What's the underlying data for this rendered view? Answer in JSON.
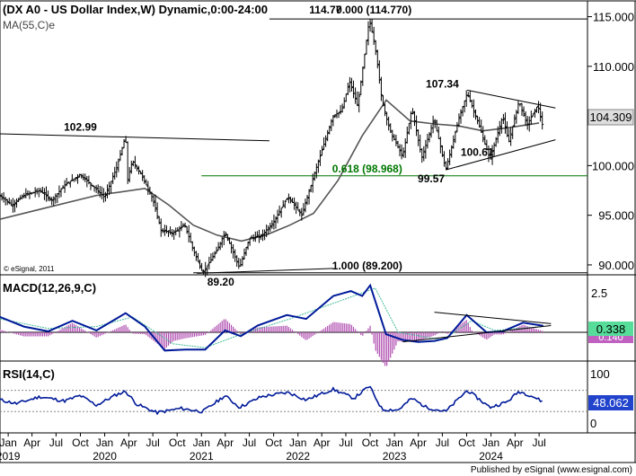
{
  "chart_data": [
    {
      "type": "candlestick",
      "title": "(DX A0 - US Dollar Index,W) Dynamic,0:00-24:00",
      "indicator_label": "MA(55,C)e",
      "copyright": "© eSignal, 2011",
      "ylim": [
        89,
        116.5
      ],
      "yticks": [
        "115.000",
        "110.000",
        "105.000",
        "100.000",
        "95.000",
        "90.000"
      ],
      "last_price": "104.309",
      "colors": {
        "candles": "#000000",
        "ma": "#555555",
        "trendline": "#000000",
        "fib_0618": "#007700"
      },
      "ohlc_path": [
        [
          "2018-12-01",
          97.0
        ],
        [
          "2019-01-15",
          96.0
        ],
        [
          "2019-03-01",
          97.0
        ],
        [
          "2019-05-01",
          97.5
        ],
        [
          "2019-06-15",
          96.5
        ],
        [
          "2019-08-01",
          98.0
        ],
        [
          "2019-09-30",
          99.1
        ],
        [
          "2019-11-15",
          98.0
        ],
        [
          "2020-01-01",
          96.8
        ],
        [
          "2020-02-15",
          99.8
        ],
        [
          "2020-03-20",
          102.99
        ],
        [
          "2020-03-27",
          98.5
        ],
        [
          "2020-04-15",
          100.5
        ],
        [
          "2020-05-20",
          99.0
        ],
        [
          "2020-06-30",
          96.7
        ],
        [
          "2020-08-01",
          93.5
        ],
        [
          "2020-09-15",
          93.2
        ],
        [
          "2020-10-30",
          94.0
        ],
        [
          "2020-12-01",
          91.5
        ],
        [
          "2021-01-06",
          89.2
        ],
        [
          "2021-03-01",
          91.5
        ],
        [
          "2021-03-31",
          93.3
        ],
        [
          "2021-05-25",
          89.7
        ],
        [
          "2021-07-01",
          92.7
        ],
        [
          "2021-08-15",
          92.9
        ],
        [
          "2021-09-30",
          94.3
        ],
        [
          "2021-11-24",
          96.9
        ],
        [
          "2022-01-15",
          95.0
        ],
        [
          "2022-03-07",
          99.4
        ],
        [
          "2022-05-13",
          105.0
        ],
        [
          "2022-06-15",
          105.5
        ],
        [
          "2022-07-15",
          108.5
        ],
        [
          "2022-08-15",
          106.0
        ],
        [
          "2022-09-28",
          114.77
        ],
        [
          "2022-10-20",
          112.0
        ],
        [
          "2022-11-15",
          106.5
        ],
        [
          "2022-12-15",
          103.5
        ],
        [
          "2023-02-01",
          100.9
        ],
        [
          "2023-03-08",
          105.8
        ],
        [
          "2023-04-14",
          100.8
        ],
        [
          "2023-05-31",
          104.7
        ],
        [
          "2023-07-14",
          99.57
        ],
        [
          "2023-08-30",
          104.5
        ],
        [
          "2023-10-03",
          107.34
        ],
        [
          "2023-11-15",
          104.2
        ],
        [
          "2023-12-28",
          100.61
        ],
        [
          "2024-02-14",
          104.97
        ],
        [
          "2024-03-08",
          102.35
        ],
        [
          "2024-04-16",
          106.52
        ],
        [
          "2024-05-16",
          104.1
        ],
        [
          "2024-06-26",
          106.1
        ],
        [
          "2024-07-17",
          103.7
        ]
      ],
      "ma_path": [
        [
          "2018-12-01",
          94.6
        ],
        [
          "2019-06-01",
          95.8
        ],
        [
          "2019-12-01",
          97.0
        ],
        [
          "2020-06-01",
          97.7
        ],
        [
          "2020-09-01",
          96.0
        ],
        [
          "2020-12-01",
          94.0
        ],
        [
          "2021-03-01",
          93.0
        ],
        [
          "2021-06-01",
          92.4
        ],
        [
          "2021-09-01",
          93.0
        ],
        [
          "2021-12-01",
          94.0
        ],
        [
          "2022-03-01",
          95.2
        ],
        [
          "2022-06-01",
          98.5
        ],
        [
          "2022-09-01",
          103.0
        ],
        [
          "2022-12-01",
          106.6
        ],
        [
          "2023-03-01",
          104.5
        ],
        [
          "2023-06-01",
          104.2
        ],
        [
          "2023-09-01",
          104.0
        ],
        [
          "2023-12-01",
          103.5
        ],
        [
          "2024-03-01",
          103.8
        ],
        [
          "2024-07-01",
          104.3
        ]
      ],
      "trendlines": [
        {
          "name": "upper-triangle-line",
          "from": [
            "2023-10-03",
            107.6
          ],
          "to": [
            "2024-09-01",
            105.8
          ]
        },
        {
          "name": "lower-triangle-line",
          "from": [
            "2023-07-14",
            99.57
          ],
          "to": [
            "2024-09-01",
            102.6
          ]
        },
        {
          "name": "2020-resistance-line",
          "from": [
            "2018-12-01",
            103.2
          ],
          "to": [
            "2021-09-15",
            102.5
          ]
        },
        {
          "name": "89-support-line",
          "from": [
            "2020-12-15",
            89.15
          ],
          "to": [
            "2022-05-15",
            89.65
          ]
        }
      ],
      "hlines": [
        {
          "name": "fib-0000-line",
          "y": 114.77,
          "from": "2021-09-15",
          "to": "2024-12-31",
          "color": "#000000"
        },
        {
          "name": "fib-0618-line",
          "y": 98.968,
          "from": "2021-01-01",
          "to": "2024-12-31",
          "color": "#007700"
        },
        {
          "name": "fib-1000-line",
          "y": 89.2,
          "from": "2020-12-01",
          "to": "2024-12-31",
          "color": "#000000"
        }
      ],
      "annotations": [
        {
          "text": "114.77",
          "x": "2022-04-15",
          "y": 114.77,
          "color": "#000000"
        },
        {
          "text": "0.000 (114.770)",
          "x": "2022-10-15",
          "y": 114.77,
          "color": "#000000"
        },
        {
          "text": "107.34",
          "x": "2023-07-01",
          "y": 107.34,
          "color": "#000000"
        },
        {
          "text": "102.99",
          "x": "2019-10-01",
          "y": 102.99,
          "color": "#000000"
        },
        {
          "text": "0.618 (98.968)",
          "x": "2022-09-20",
          "y": 98.968,
          "color": "#007700"
        },
        {
          "text": "99.57",
          "x": "2023-05-20",
          "y": 99.57,
          "color": "#000000"
        },
        {
          "text": "100.61",
          "x": "2023-11-10",
          "y": 100.61,
          "color": "#000000"
        },
        {
          "text": "1.000 (89.200)",
          "x": "2022-09-20",
          "y": 89.2,
          "color": "#000000"
        },
        {
          "text": "89.20",
          "x": "2021-03-15",
          "y": 89.2,
          "color": "#000000"
        }
      ]
    },
    {
      "type": "line",
      "title": "MACD(12,26,9,C)",
      "ylim": [
        -1.5,
        3.0
      ],
      "yticks": [
        "2.5"
      ],
      "last_value": "0.338",
      "hidden_value": "0.140",
      "colors": {
        "macd": "#001a99",
        "signal": "#44bb99",
        "histogram": "#b04fb0",
        "triangle": "#000000"
      },
      "macd_path": [
        [
          "2018-12-01",
          0.8
        ],
        [
          "2019-03-01",
          0.3
        ],
        [
          "2019-06-01",
          0.05
        ],
        [
          "2019-09-01",
          0.6
        ],
        [
          "2019-12-01",
          0.1
        ],
        [
          "2020-03-20",
          1.0
        ],
        [
          "2020-06-01",
          0.3
        ],
        [
          "2020-08-15",
          -0.95
        ],
        [
          "2020-11-01",
          -0.9
        ],
        [
          "2021-01-15",
          -0.9
        ],
        [
          "2021-03-31",
          0.1
        ],
        [
          "2021-05-30",
          -0.2
        ],
        [
          "2021-08-01",
          0.35
        ],
        [
          "2021-11-20",
          0.9
        ],
        [
          "2022-02-01",
          0.7
        ],
        [
          "2022-05-15",
          1.9
        ],
        [
          "2022-07-20",
          2.15
        ],
        [
          "2022-09-01",
          1.9
        ],
        [
          "2022-10-01",
          2.45
        ],
        [
          "2022-11-30",
          -0.1
        ],
        [
          "2023-02-01",
          -0.4
        ],
        [
          "2023-04-01",
          -0.5
        ],
        [
          "2023-06-01",
          -0.45
        ],
        [
          "2023-07-20",
          -0.3
        ],
        [
          "2023-10-01",
          0.9
        ],
        [
          "2023-12-15",
          0.0
        ],
        [
          "2024-02-15",
          0.05
        ],
        [
          "2024-05-01",
          0.5
        ],
        [
          "2024-07-17",
          0.338
        ]
      ],
      "signal_path": [
        [
          "2018-12-01",
          0.7
        ],
        [
          "2019-06-01",
          0.2
        ],
        [
          "2019-12-01",
          0.3
        ],
        [
          "2020-04-15",
          0.8
        ],
        [
          "2020-09-15",
          -0.6
        ],
        [
          "2021-01-15",
          -0.8
        ],
        [
          "2021-06-01",
          -0.1
        ],
        [
          "2021-12-01",
          0.7
        ],
        [
          "2022-06-01",
          1.6
        ],
        [
          "2022-10-20",
          2.3
        ],
        [
          "2023-01-15",
          0.0
        ],
        [
          "2023-07-01",
          -0.4
        ],
        [
          "2023-10-20",
          0.6
        ],
        [
          "2024-01-15",
          0.1
        ],
        [
          "2024-07-17",
          0.3
        ]
      ],
      "triangle": [
        {
          "from": [
            "2023-06-01",
            1.05
          ],
          "to": [
            "2024-08-15",
            0.45
          ]
        },
        {
          "from": [
            "2023-02-01",
            -0.5
          ],
          "to": [
            "2024-08-15",
            0.35
          ]
        }
      ]
    },
    {
      "type": "line",
      "title": "RSI(14,C)",
      "ylim": [
        -10,
        125
      ],
      "yticks": [
        "100",
        "50",
        "0"
      ],
      "last_value": "48.062",
      "colors": {
        "rsi": "#001a99",
        "reference": "#888888"
      },
      "reference_levels": [
        70,
        30
      ],
      "rsi_path": [
        [
          "2018-12-01",
          52
        ],
        [
          "2019-02-01",
          45
        ],
        [
          "2019-05-01",
          58
        ],
        [
          "2019-08-01",
          50
        ],
        [
          "2019-10-01",
          60
        ],
        [
          "2019-12-01",
          42
        ],
        [
          "2020-02-15",
          62
        ],
        [
          "2020-03-20",
          68
        ],
        [
          "2020-05-01",
          44
        ],
        [
          "2020-07-15",
          28
        ],
        [
          "2020-10-15",
          36
        ],
        [
          "2021-01-06",
          30
        ],
        [
          "2021-03-31",
          60
        ],
        [
          "2021-05-25",
          38
        ],
        [
          "2021-08-15",
          58
        ],
        [
          "2021-11-24",
          66
        ],
        [
          "2022-02-01",
          52
        ],
        [
          "2022-05-13",
          72
        ],
        [
          "2022-08-01",
          55
        ],
        [
          "2022-09-28",
          78
        ],
        [
          "2022-11-15",
          34
        ],
        [
          "2023-01-15",
          33
        ],
        [
          "2023-03-08",
          55
        ],
        [
          "2023-05-01",
          38
        ],
        [
          "2023-07-14",
          30
        ],
        [
          "2023-10-03",
          70
        ],
        [
          "2023-12-28",
          38
        ],
        [
          "2024-03-01",
          48
        ],
        [
          "2024-04-16",
          68
        ],
        [
          "2024-06-01",
          60
        ],
        [
          "2024-07-17",
          48.062
        ]
      ]
    }
  ],
  "x_axis": {
    "month_labels": [
      {
        "label": "Jan",
        "date": "2019-01-01"
      },
      {
        "label": "Apr",
        "date": "2019-04-01"
      },
      {
        "label": "Jul",
        "date": "2019-07-01"
      },
      {
        "label": "Oct",
        "date": "2019-10-01"
      },
      {
        "label": "Jan",
        "date": "2020-01-01"
      },
      {
        "label": "Apr",
        "date": "2020-04-01"
      },
      {
        "label": "Jul",
        "date": "2020-07-01"
      },
      {
        "label": "Oct",
        "date": "2020-10-01"
      },
      {
        "label": "Jan",
        "date": "2021-01-01"
      },
      {
        "label": "Apr",
        "date": "2021-04-01"
      },
      {
        "label": "Jul",
        "date": "2021-07-01"
      },
      {
        "label": "Oct",
        "date": "2021-10-01"
      },
      {
        "label": "Jan",
        "date": "2022-01-01"
      },
      {
        "label": "Apr",
        "date": "2022-04-01"
      },
      {
        "label": "Jul",
        "date": "2022-07-01"
      },
      {
        "label": "Oct",
        "date": "2022-10-01"
      },
      {
        "label": "Jan",
        "date": "2023-01-01"
      },
      {
        "label": "Apr",
        "date": "2023-04-01"
      },
      {
        "label": "Jul",
        "date": "2023-07-01"
      },
      {
        "label": "Oct",
        "date": "2023-10-01"
      },
      {
        "label": "Jan",
        "date": "2024-01-01"
      },
      {
        "label": "Apr",
        "date": "2024-04-01"
      },
      {
        "label": "Jul",
        "date": "2024-07-01"
      }
    ],
    "year_labels": [
      {
        "label": "2019",
        "date": "2019-01-01"
      },
      {
        "label": "2020",
        "date": "2020-01-01"
      },
      {
        "label": "2021",
        "date": "2021-01-01"
      },
      {
        "label": "2022",
        "date": "2022-01-01"
      },
      {
        "label": "2023",
        "date": "2023-01-01"
      },
      {
        "label": "2024",
        "date": "2024-01-01"
      }
    ]
  },
  "footer": "Published by eSignal (www.esignal.com)"
}
